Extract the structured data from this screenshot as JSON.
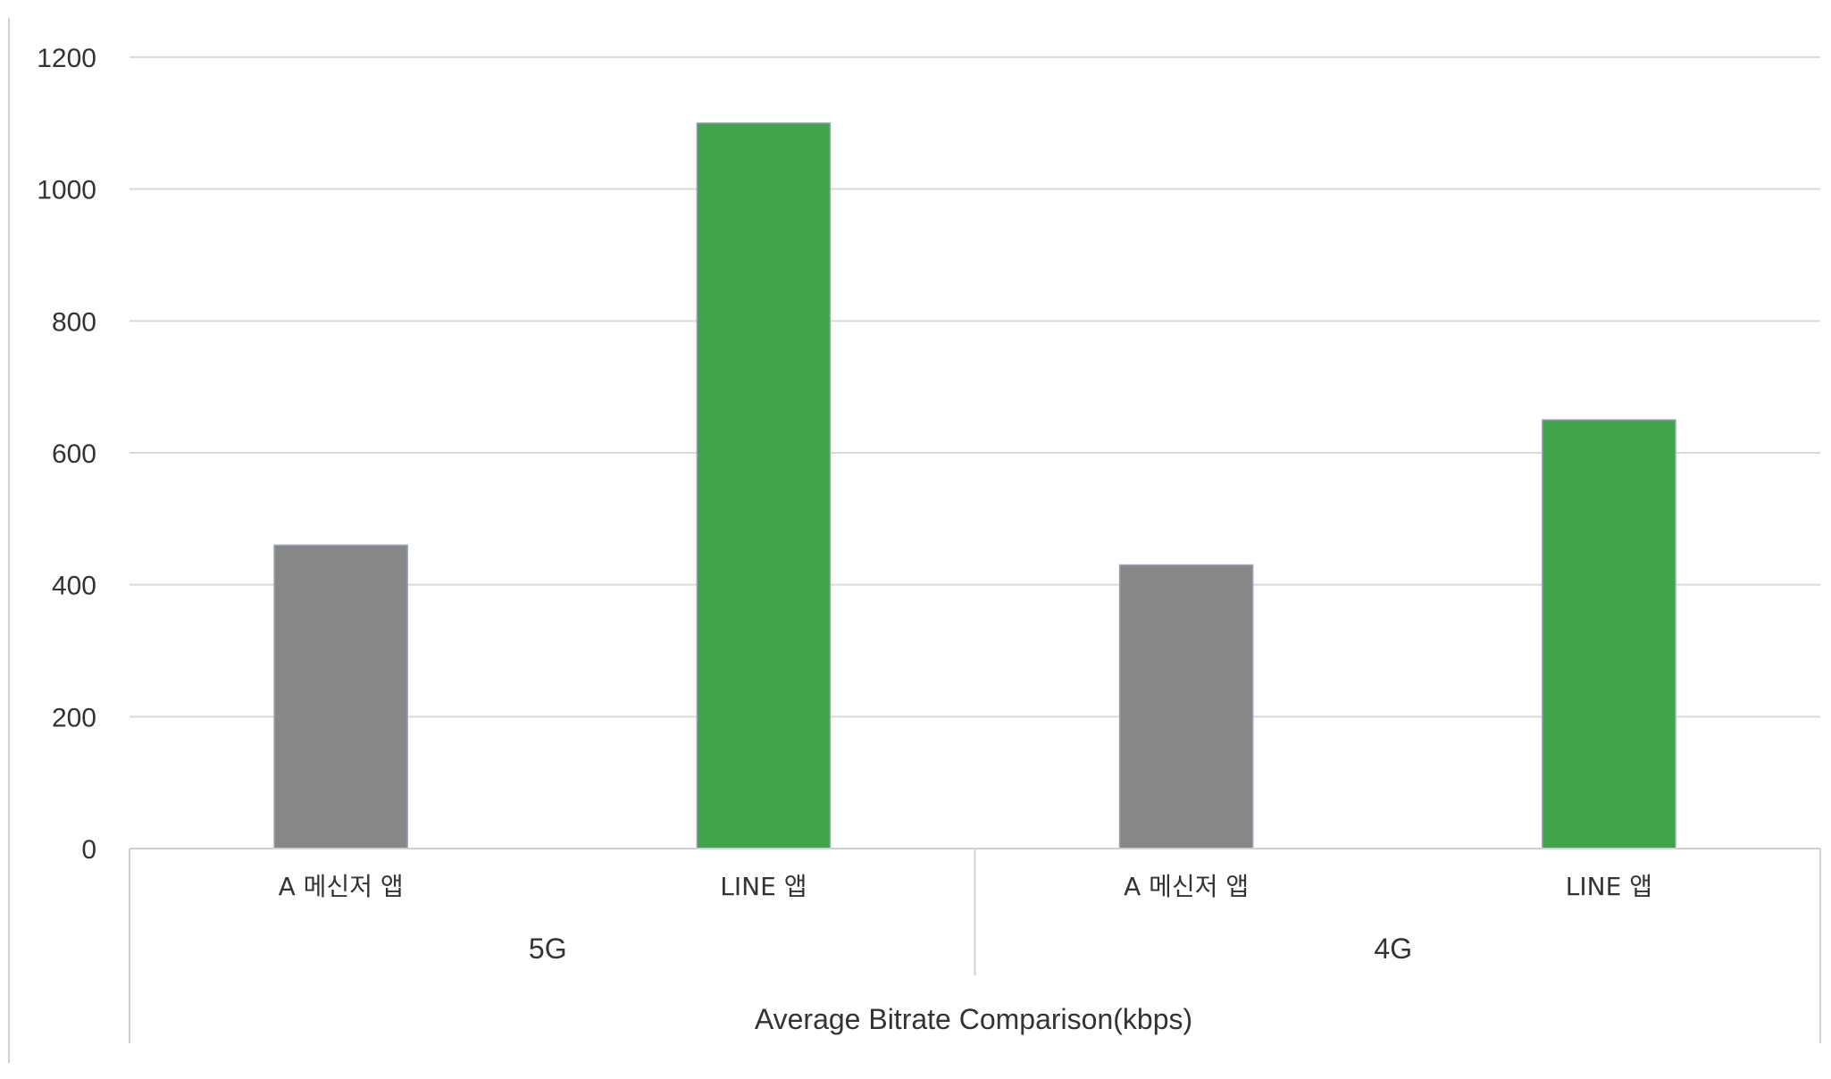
{
  "chart_data": {
    "type": "bar",
    "groups": [
      {
        "label": "5G",
        "categories": [
          "A 메신저 앱",
          "LINE 앱"
        ]
      },
      {
        "label": "4G",
        "categories": [
          "A 메신저 앱",
          "LINE 앱"
        ]
      }
    ],
    "values": [
      460,
      1100,
      430,
      650
    ],
    "bar_colors": [
      "#878787",
      "#41a34c",
      "#878787",
      "#41a34c"
    ],
    "title": "",
    "xlabel": "Average Bitrate Comparison(kbps)",
    "ylabel": "",
    "ylim": [
      0,
      1200
    ],
    "yticks": [
      "0",
      "200",
      "400",
      "600",
      "800",
      "1000",
      "1200"
    ],
    "grid": true,
    "legend": "none"
  }
}
